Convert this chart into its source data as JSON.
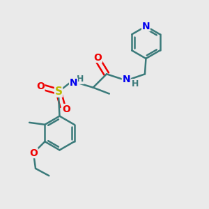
{
  "bg_color": "#eaeaea",
  "atom_colors": {
    "C": "#3a7a7a",
    "N": "#0000ee",
    "O": "#ee0000",
    "S": "#bbbb00",
    "H": "#3a7a7a"
  },
  "bond_color": "#3a7a7a",
  "bond_width": 1.8,
  "dbo": 0.12,
  "font_size": 10,
  "figsize": [
    3.0,
    3.0
  ],
  "dpi": 100,
  "xlim": [
    0,
    10
  ],
  "ylim": [
    0,
    10
  ]
}
